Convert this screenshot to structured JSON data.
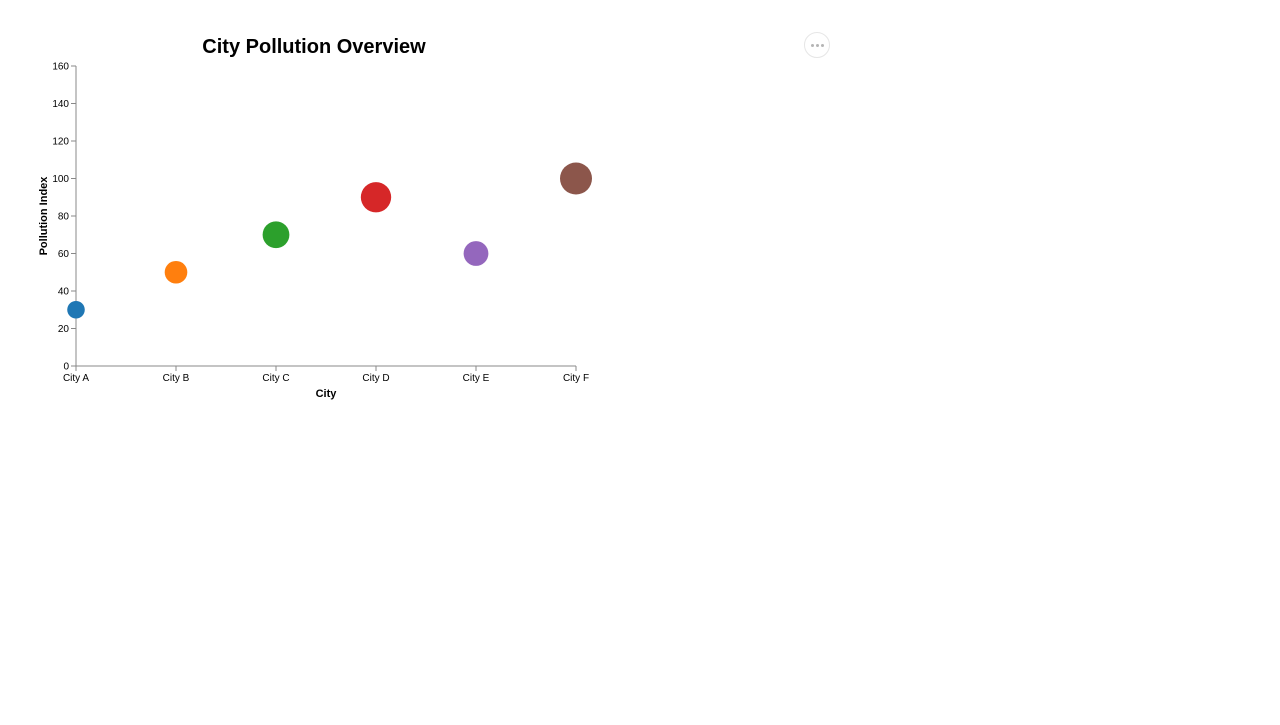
{
  "actions_menu": {
    "icon": "more-horizontal-icon"
  },
  "chart_data": {
    "type": "scatter",
    "title": "City Pollution Overview",
    "xlabel": "City",
    "ylabel": "Pollution Index",
    "categories": [
      "City A",
      "City B",
      "City C",
      "City D",
      "City E",
      "City F"
    ],
    "values": [
      30,
      50,
      70,
      90,
      60,
      100
    ],
    "colors": [
      "#1f77b4",
      "#ff7f0e",
      "#2ca02c",
      "#d62728",
      "#9467bd",
      "#8c564b"
    ],
    "ylim": [
      0,
      160
    ],
    "yticks": [
      0,
      20,
      40,
      60,
      80,
      100,
      120,
      140,
      160
    ],
    "grid": false,
    "legend": "none",
    "point_size_encodes": "value"
  }
}
